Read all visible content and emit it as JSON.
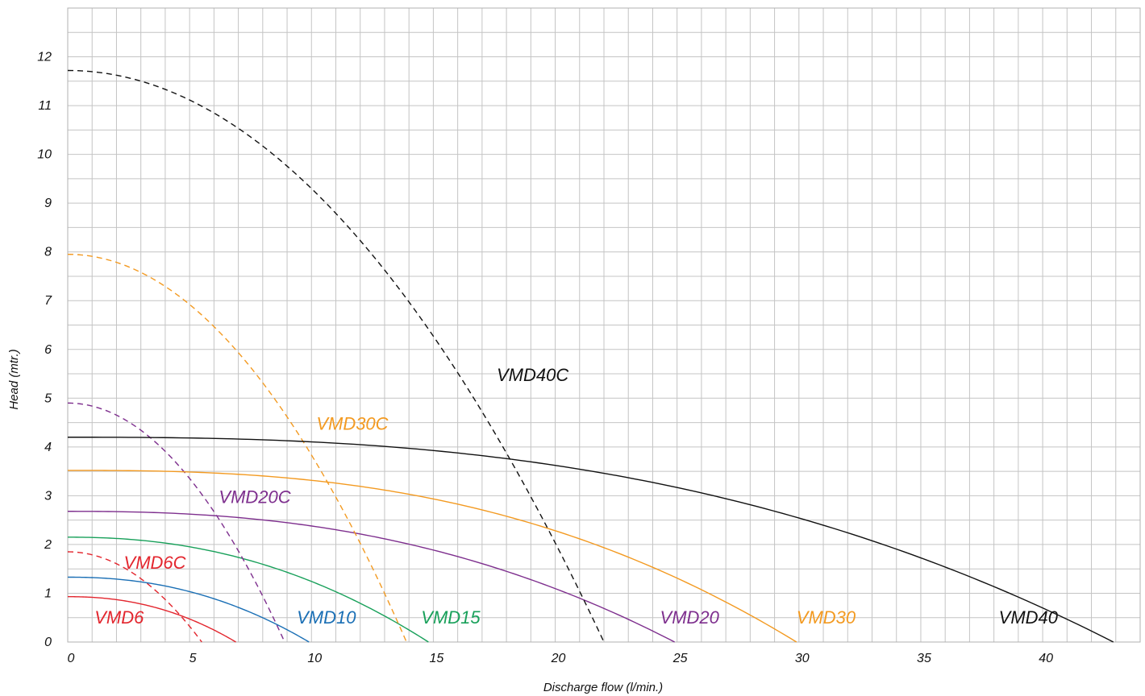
{
  "chart_data": {
    "type": "line",
    "title": "",
    "xlabel": "Discharge flow (l/min.)",
    "ylabel": "Head (mtr.)",
    "xlim": [
      0,
      44
    ],
    "ylim": [
      0,
      13
    ],
    "x_ticks": [
      0,
      5,
      10,
      15,
      20,
      25,
      30,
      35,
      40
    ],
    "y_ticks": [
      0,
      1,
      2,
      3,
      4,
      5,
      6,
      7,
      8,
      9,
      10,
      11,
      12
    ],
    "grid": {
      "x_minor_step": 1,
      "y_minor_step": 0.5,
      "enabled": true
    },
    "series": [
      {
        "name": "VMD6",
        "style": "solid",
        "color": "#e3262e",
        "max_head": 0.93,
        "max_flow": 6.9,
        "exponent": 2.2,
        "label_at": [
          1.1,
          0.38
        ]
      },
      {
        "name": "VMD6C",
        "style": "dashed",
        "color": "#e3262e",
        "max_head": 1.85,
        "max_flow": 5.5,
        "exponent": 2.0,
        "label_at": [
          2.3,
          1.5
        ]
      },
      {
        "name": "VMD10",
        "style": "solid",
        "color": "#1a6fb5",
        "max_head": 1.33,
        "max_flow": 9.9,
        "exponent": 2.2,
        "label_at": [
          9.4,
          0.38
        ]
      },
      {
        "name": "VMD15",
        "style": "solid",
        "color": "#18a05a",
        "max_head": 2.15,
        "max_flow": 14.8,
        "exponent": 2.2,
        "label_at": [
          14.5,
          0.38
        ]
      },
      {
        "name": "VMD20C",
        "style": "dashed",
        "color": "#7e2f8e",
        "max_head": 4.9,
        "max_flow": 8.9,
        "exponent": 2.0,
        "label_at": [
          6.2,
          2.85
        ]
      },
      {
        "name": "VMD20",
        "style": "solid",
        "color": "#7e2f8e",
        "max_head": 2.68,
        "max_flow": 24.9,
        "exponent": 2.4,
        "label_at": [
          24.3,
          0.38
        ]
      },
      {
        "name": "VMD30C",
        "style": "dashed",
        "color": "#f39a21",
        "max_head": 7.95,
        "max_flow": 13.9,
        "exponent": 2.0,
        "label_at": [
          10.2,
          4.35
        ]
      },
      {
        "name": "VMD30",
        "style": "solid",
        "color": "#f39a21",
        "max_head": 3.52,
        "max_flow": 29.9,
        "exponent": 2.6,
        "label_at": [
          29.9,
          0.38
        ]
      },
      {
        "name": "VMD40C",
        "style": "dashed",
        "color": "#111111",
        "max_head": 11.72,
        "max_flow": 22.0,
        "exponent": 2.0,
        "label_at": [
          17.6,
          5.35
        ]
      },
      {
        "name": "VMD40",
        "style": "solid",
        "color": "#111111",
        "max_head": 4.2,
        "max_flow": 42.9,
        "exponent": 2.6,
        "label_at": [
          38.2,
          0.38
        ]
      }
    ]
  }
}
